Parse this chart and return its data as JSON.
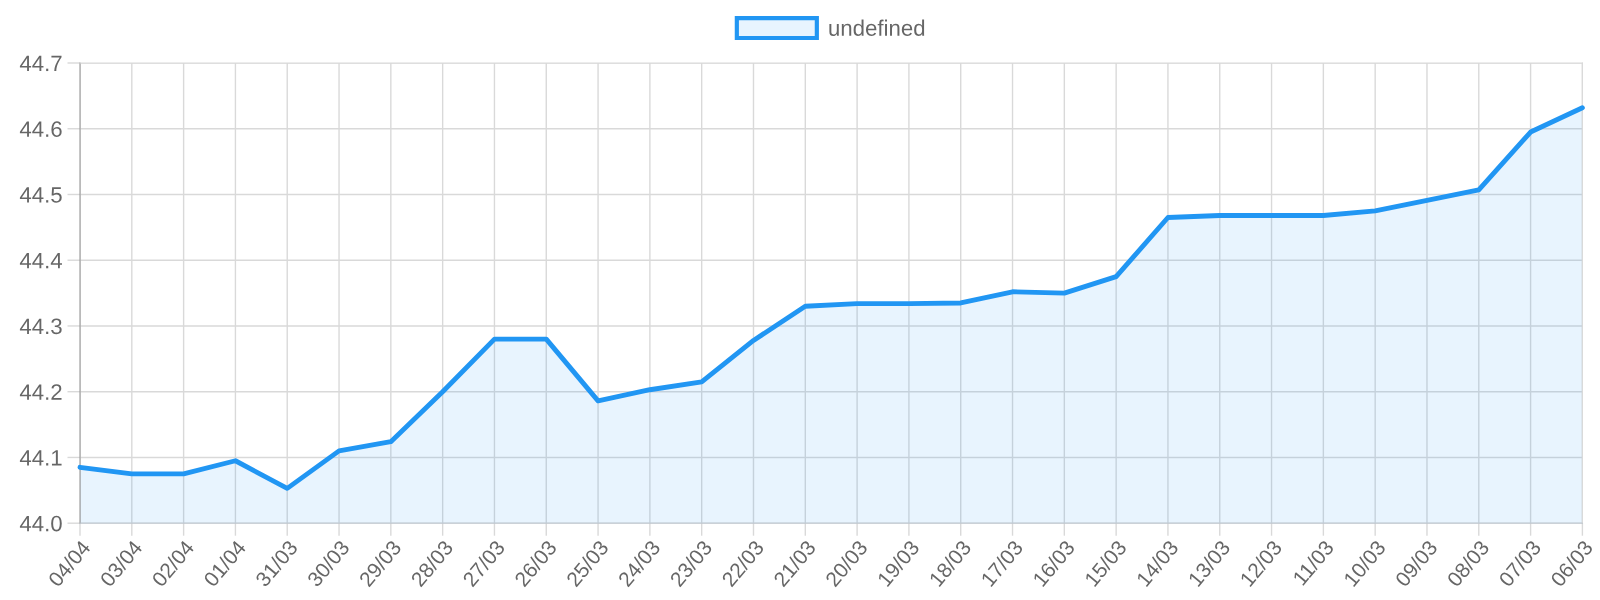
{
  "chart_data": {
    "type": "area",
    "categories": [
      "04/04",
      "03/04",
      "02/04",
      "01/04",
      "31/03",
      "30/03",
      "29/03",
      "28/03",
      "27/03",
      "26/03",
      "25/03",
      "24/03",
      "23/03",
      "22/03",
      "21/03",
      "20/03",
      "19/03",
      "18/03",
      "17/03",
      "16/03",
      "15/03",
      "14/03",
      "13/03",
      "12/03",
      "11/03",
      "10/03",
      "09/03",
      "08/03",
      "07/03",
      "06/03"
    ],
    "series": [
      {
        "name": "undefined",
        "color": "#2196f3",
        "values": [
          44.085,
          44.075,
          44.075,
          44.095,
          44.053,
          44.11,
          44.124,
          44.2,
          44.28,
          44.28,
          44.186,
          44.203,
          44.215,
          44.278,
          44.33,
          44.334,
          44.334,
          44.335,
          44.352,
          44.35,
          44.375,
          44.465,
          44.468,
          44.468,
          44.468,
          44.475,
          44.491,
          44.507,
          44.595,
          44.632
        ]
      }
    ],
    "ylim": [
      44.0,
      44.7
    ],
    "yticks": [
      {
        "value": 44.0,
        "label": "44.0"
      },
      {
        "value": 44.1,
        "label": "44.1"
      },
      {
        "value": 44.2,
        "label": "44.2"
      },
      {
        "value": 44.3,
        "label": "44.3"
      },
      {
        "value": 44.4,
        "label": "44.4"
      },
      {
        "value": 44.5,
        "label": "44.5"
      },
      {
        "value": 44.6,
        "label": "44.6"
      },
      {
        "value": 44.7,
        "label": "44.7"
      }
    ],
    "grid": true,
    "legend": "top"
  }
}
